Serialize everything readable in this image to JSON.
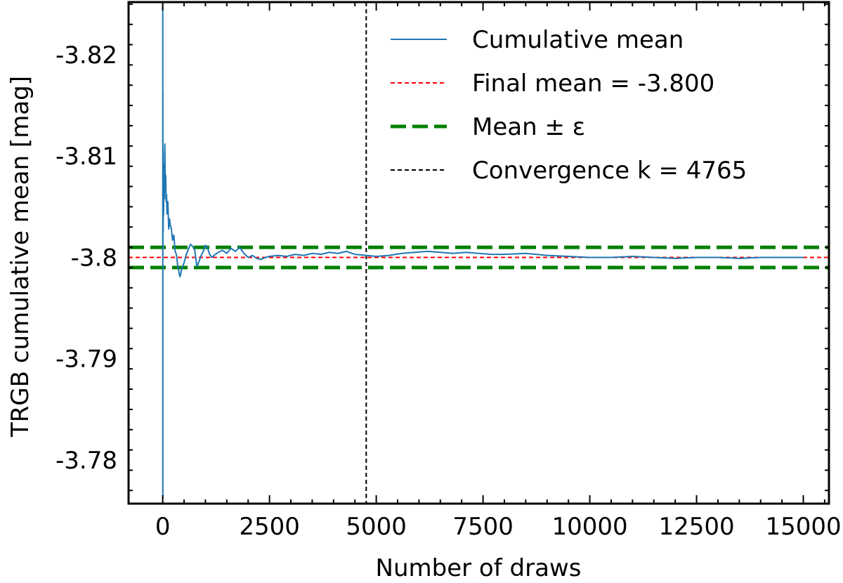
{
  "chart_data": {
    "type": "line",
    "title": "",
    "xlabel": "Number of draws",
    "ylabel": "TRGB cumulative mean [mag]",
    "xlim": [
      -800,
      15600
    ],
    "ylim": [
      -3.7757,
      -3.8252
    ],
    "y_axis_inverted": true,
    "grid": false,
    "x_ticks": [
      0,
      2500,
      5000,
      7500,
      10000,
      12500,
      15000
    ],
    "x_tick_labels": [
      "0",
      "2500",
      "5000",
      "7500",
      "10000",
      "12500",
      "15000"
    ],
    "y_ticks": [
      -3.82,
      -3.81,
      -3.8,
      -3.79,
      -3.78
    ],
    "y_tick_labels": [
      "-3.82",
      "-3.81",
      "-3.8",
      "-3.79",
      "-3.78"
    ],
    "legend_position": "top-right",
    "colors": {
      "cumulative": "#1f77b4",
      "final_mean": "#ff0000",
      "band": "#008000",
      "convergence": "#000000"
    },
    "final_mean": -3.8,
    "epsilon": 0.001,
    "convergence_k": 4765,
    "legend": [
      {
        "key": "cumulative",
        "label": "Cumulative mean",
        "style": "solid"
      },
      {
        "key": "final_mean",
        "label": "Final mean = -3.800",
        "style": "dashed-thin"
      },
      {
        "key": "band",
        "label": "Mean ± ε",
        "style": "dashed-thick"
      },
      {
        "key": "convergence",
        "label": "Convergence k = 4765",
        "style": "dashed-thin"
      }
    ],
    "series": [
      {
        "name": "Cumulative mean",
        "points": [
          [
            1,
            -3.8248
          ],
          [
            2,
            -3.7762
          ],
          [
            3,
            -3.8164
          ],
          [
            5,
            -3.8008
          ],
          [
            8,
            -3.8105
          ],
          [
            10,
            -3.8025
          ],
          [
            15,
            -3.8071
          ],
          [
            20,
            -3.8042
          ],
          [
            30,
            -3.8092
          ],
          [
            40,
            -3.8058
          ],
          [
            50,
            -3.8112
          ],
          [
            60,
            -3.8072
          ],
          [
            70,
            -3.8081
          ],
          [
            80,
            -3.8055
          ],
          [
            90,
            -3.8062
          ],
          [
            100,
            -3.8043
          ],
          [
            120,
            -3.8055
          ],
          [
            140,
            -3.8028
          ],
          [
            160,
            -3.8038
          ],
          [
            180,
            -3.8031
          ],
          [
            200,
            -3.8029
          ],
          [
            230,
            -3.8017
          ],
          [
            260,
            -3.8022
          ],
          [
            290,
            -3.8006
          ],
          [
            320,
            -3.8003
          ],
          [
            350,
            -3.7992
          ],
          [
            380,
            -3.7986
          ],
          [
            400,
            -3.7981
          ],
          [
            420,
            -3.7983
          ],
          [
            450,
            -3.799
          ],
          [
            480,
            -3.7992
          ],
          [
            520,
            -3.7998
          ],
          [
            560,
            -3.8004
          ],
          [
            600,
            -3.8008
          ],
          [
            650,
            -3.8013
          ],
          [
            700,
            -3.8011
          ],
          [
            750,
            -3.8007
          ],
          [
            800,
            -3.7991
          ],
          [
            850,
            -3.7996
          ],
          [
            900,
            -3.8002
          ],
          [
            950,
            -3.8006
          ],
          [
            1000,
            -3.8012
          ],
          [
            1050,
            -3.8009
          ],
          [
            1100,
            -3.8003
          ],
          [
            1150,
            -3.8
          ],
          [
            1200,
            -3.8002
          ],
          [
            1300,
            -3.8005
          ],
          [
            1400,
            -3.8007
          ],
          [
            1500,
            -3.8004
          ],
          [
            1600,
            -3.8009
          ],
          [
            1700,
            -3.8006
          ],
          [
            1800,
            -3.801
          ],
          [
            1900,
            -3.8004
          ],
          [
            2000,
            -3.8
          ],
          [
            2100,
            -3.8002
          ],
          [
            2200,
            -3.7999
          ],
          [
            2300,
            -3.7998
          ],
          [
            2400,
            -3.8
          ],
          [
            2500,
            -3.8001
          ],
          [
            2700,
            -3.8002
          ],
          [
            2900,
            -3.8001
          ],
          [
            3100,
            -3.8003
          ],
          [
            3300,
            -3.8002
          ],
          [
            3500,
            -3.8004
          ],
          [
            3700,
            -3.8003
          ],
          [
            3900,
            -3.8005
          ],
          [
            4100,
            -3.8004
          ],
          [
            4300,
            -3.8006
          ],
          [
            4500,
            -3.8003
          ],
          [
            4765,
            -3.8002
          ],
          [
            5000,
            -3.8001
          ],
          [
            5300,
            -3.8002
          ],
          [
            5600,
            -3.8004
          ],
          [
            5900,
            -3.8005
          ],
          [
            6200,
            -3.8006
          ],
          [
            6500,
            -3.8005
          ],
          [
            6800,
            -3.8004
          ],
          [
            7100,
            -3.8005
          ],
          [
            7400,
            -3.8004
          ],
          [
            7700,
            -3.8003
          ],
          [
            8000,
            -3.8003
          ],
          [
            8500,
            -3.8004
          ],
          [
            9000,
            -3.8002
          ],
          [
            9500,
            -3.8001
          ],
          [
            10000,
            -3.8
          ],
          [
            10500,
            -3.8
          ],
          [
            11000,
            -3.8001
          ],
          [
            11500,
            -3.8
          ],
          [
            12000,
            -3.7999
          ],
          [
            12500,
            -3.8
          ],
          [
            13000,
            -3.8
          ],
          [
            13500,
            -3.7999
          ],
          [
            14000,
            -3.8
          ],
          [
            14500,
            -3.8
          ],
          [
            15000,
            -3.8
          ]
        ]
      }
    ]
  }
}
